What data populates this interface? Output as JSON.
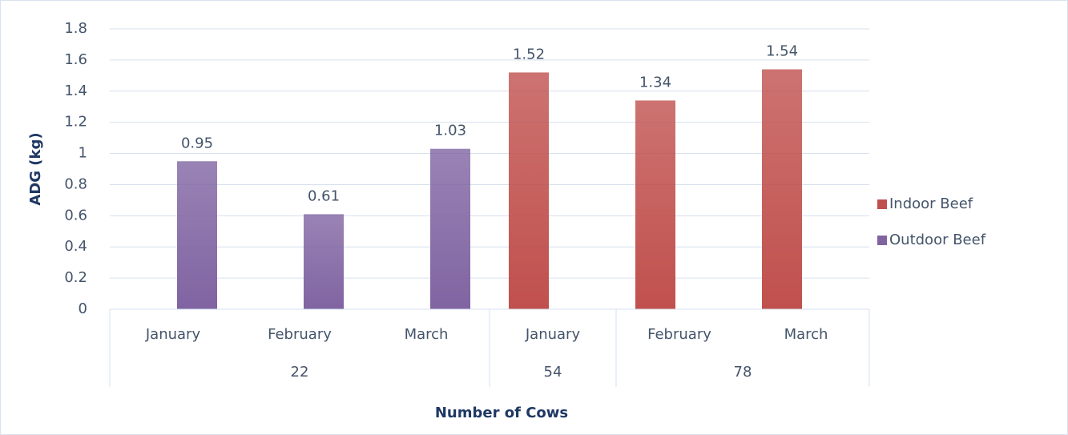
{
  "chart_data": {
    "type": "bar",
    "xlabel": "Number of Cows",
    "ylabel": "ADG (kg)",
    "groups": [
      {
        "label": "22",
        "categories": [
          "January",
          "February",
          "March"
        ]
      },
      {
        "label": "54",
        "categories": [
          "January"
        ]
      },
      {
        "label": "78",
        "categories": [
          "February",
          "March"
        ]
      }
    ],
    "series": [
      {
        "name": "Indoor Beef",
        "color": "#c0504d",
        "values": [
          null,
          null,
          null,
          1.52,
          1.34,
          1.54
        ]
      },
      {
        "name": "Outdoor Beef",
        "color": "#8064a2",
        "values": [
          0.95,
          0.61,
          1.03,
          null,
          null,
          null
        ]
      }
    ],
    "ylim": [
      0,
      1.8
    ],
    "yticks": [
      0,
      0.2,
      0.4,
      0.6,
      0.8,
      1,
      1.2,
      1.4,
      1.6,
      1.8
    ],
    "grid": true,
    "legend": "right"
  }
}
